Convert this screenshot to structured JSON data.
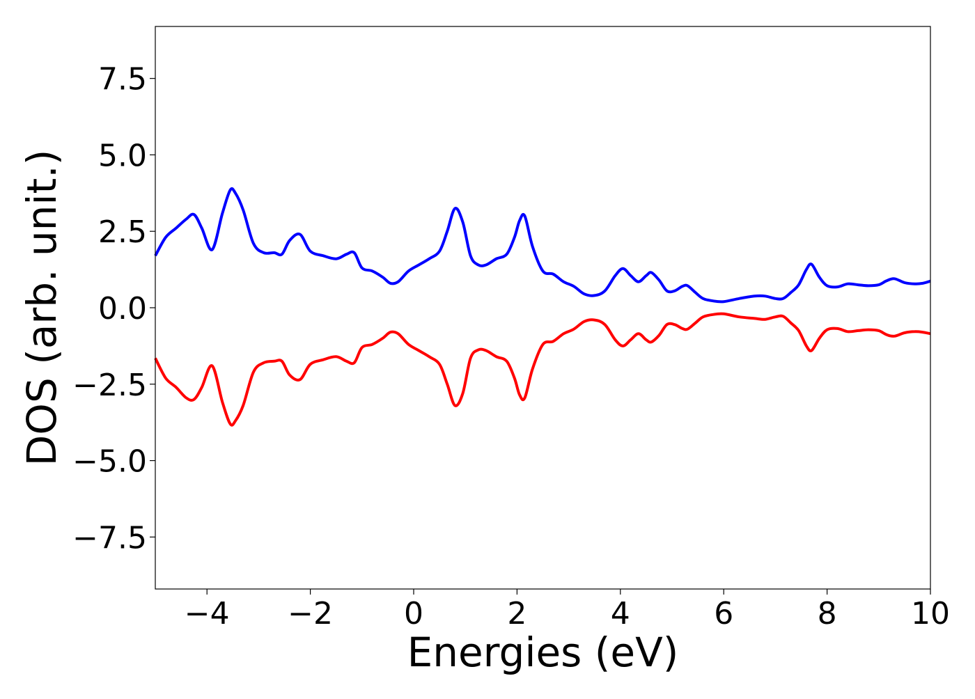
{
  "chart_data": {
    "type": "line",
    "title": "",
    "xlabel": "Energies (eV)",
    "ylabel": "DOS (arb. unit.)",
    "xlim": [
      -5,
      10
    ],
    "ylim": [
      -9.2,
      9.2
    ],
    "x_ticks": [
      -4,
      -2,
      0,
      2,
      4,
      6,
      8,
      10
    ],
    "x_tick_labels": [
      "−4",
      "−2",
      "0",
      "2",
      "4",
      "6",
      "8",
      "10"
    ],
    "y_ticks": [
      7.5,
      5.0,
      2.5,
      0.0,
      -2.5,
      -5.0,
      -7.5
    ],
    "y_tick_labels": [
      "7.5",
      "5.0",
      "2.5",
      "0.0",
      "−2.5",
      "−5.0",
      "−7.5"
    ],
    "grid": false,
    "series": [
      {
        "color": "#0000ff",
        "x": [
          -5.0,
          -4.8,
          -4.6,
          -4.4,
          -4.25,
          -4.1,
          -3.9,
          -3.7,
          -3.55,
          -3.45,
          -3.3,
          -3.1,
          -2.9,
          -2.7,
          -2.55,
          -2.4,
          -2.2,
          -2.0,
          -1.75,
          -1.5,
          -1.3,
          -1.15,
          -1.0,
          -0.8,
          -0.6,
          -0.45,
          -0.3,
          -0.1,
          0.1,
          0.3,
          0.5,
          0.65,
          0.8,
          0.95,
          1.1,
          1.25,
          1.4,
          1.6,
          1.8,
          1.95,
          2.05,
          2.15,
          2.3,
          2.5,
          2.7,
          2.9,
          3.1,
          3.3,
          3.5,
          3.7,
          3.9,
          4.05,
          4.2,
          4.35,
          4.5,
          4.6,
          4.75,
          4.9,
          5.05,
          5.2,
          5.3,
          5.45,
          5.6,
          5.8,
          6.0,
          6.3,
          6.6,
          6.8,
          7.0,
          7.15,
          7.3,
          7.45,
          7.6,
          7.7,
          7.85,
          8.0,
          8.2,
          8.4,
          8.6,
          8.8,
          9.0,
          9.15,
          9.3,
          9.5,
          9.7,
          9.85,
          10.0
        ],
        "y": [
          1.7,
          2.3,
          2.6,
          2.9,
          3.05,
          2.6,
          1.9,
          3.1,
          3.85,
          3.75,
          3.2,
          2.1,
          1.8,
          1.8,
          1.75,
          2.2,
          2.4,
          1.85,
          1.7,
          1.6,
          1.75,
          1.8,
          1.3,
          1.2,
          1.0,
          0.8,
          0.85,
          1.2,
          1.4,
          1.6,
          1.85,
          2.5,
          3.25,
          2.8,
          1.7,
          1.4,
          1.4,
          1.6,
          1.75,
          2.3,
          2.85,
          3.0,
          2.0,
          1.2,
          1.1,
          0.85,
          0.7,
          0.45,
          0.4,
          0.55,
          1.05,
          1.28,
          1.05,
          0.85,
          1.05,
          1.15,
          0.9,
          0.55,
          0.55,
          0.7,
          0.72,
          0.5,
          0.3,
          0.22,
          0.2,
          0.3,
          0.38,
          0.38,
          0.3,
          0.3,
          0.5,
          0.75,
          1.25,
          1.42,
          1.0,
          0.72,
          0.68,
          0.78,
          0.75,
          0.72,
          0.75,
          0.88,
          0.95,
          0.82,
          0.78,
          0.8,
          0.87
        ]
      },
      {
        "color": "#ff0000",
        "x": [
          -5.0,
          -4.8,
          -4.6,
          -4.4,
          -4.25,
          -4.1,
          -3.9,
          -3.7,
          -3.55,
          -3.45,
          -3.3,
          -3.1,
          -2.9,
          -2.7,
          -2.55,
          -2.4,
          -2.2,
          -2.0,
          -1.75,
          -1.5,
          -1.3,
          -1.15,
          -1.0,
          -0.8,
          -0.6,
          -0.45,
          -0.3,
          -0.1,
          0.1,
          0.3,
          0.5,
          0.65,
          0.8,
          0.95,
          1.1,
          1.25,
          1.4,
          1.6,
          1.8,
          1.95,
          2.05,
          2.15,
          2.3,
          2.5,
          2.7,
          2.9,
          3.1,
          3.3,
          3.5,
          3.7,
          3.9,
          4.05,
          4.2,
          4.35,
          4.5,
          4.6,
          4.75,
          4.9,
          5.05,
          5.2,
          5.3,
          5.45,
          5.6,
          5.8,
          6.0,
          6.3,
          6.6,
          6.8,
          7.0,
          7.15,
          7.3,
          7.45,
          7.6,
          7.7,
          7.85,
          8.0,
          8.2,
          8.4,
          8.6,
          8.8,
          9.0,
          9.15,
          9.3,
          9.5,
          9.7,
          9.85,
          10.0
        ],
        "y": [
          -1.65,
          -2.3,
          -2.6,
          -2.95,
          -3.0,
          -2.6,
          -1.9,
          -3.1,
          -3.8,
          -3.7,
          -3.2,
          -2.1,
          -1.8,
          -1.75,
          -1.75,
          -2.2,
          -2.35,
          -1.85,
          -1.7,
          -1.6,
          -1.75,
          -1.8,
          -1.3,
          -1.2,
          -1.0,
          -0.8,
          -0.85,
          -1.2,
          -1.4,
          -1.6,
          -1.85,
          -2.5,
          -3.2,
          -2.8,
          -1.65,
          -1.38,
          -1.4,
          -1.6,
          -1.75,
          -2.3,
          -2.85,
          -2.95,
          -2.0,
          -1.2,
          -1.1,
          -0.85,
          -0.7,
          -0.45,
          -0.4,
          -0.55,
          -1.05,
          -1.25,
          -1.05,
          -0.85,
          -1.05,
          -1.12,
          -0.9,
          -0.55,
          -0.55,
          -0.68,
          -0.7,
          -0.5,
          -0.3,
          -0.22,
          -0.2,
          -0.3,
          -0.35,
          -0.38,
          -0.3,
          -0.28,
          -0.5,
          -0.75,
          -1.25,
          -1.4,
          -1.0,
          -0.72,
          -0.68,
          -0.78,
          -0.75,
          -0.72,
          -0.75,
          -0.88,
          -0.93,
          -0.82,
          -0.78,
          -0.8,
          -0.85
        ]
      }
    ]
  }
}
